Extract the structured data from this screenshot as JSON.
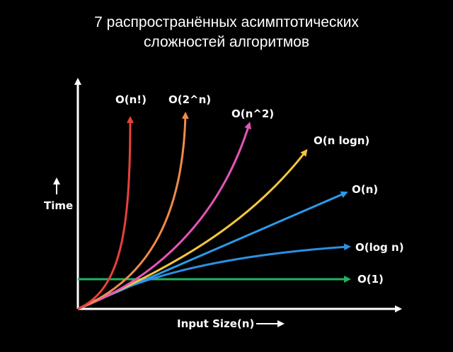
{
  "title": {
    "line1": "7 распространённых асимптотических",
    "line2": "сложностей алгоритмов"
  },
  "axes": {
    "y_label": "Time",
    "x_label": "Input Size(n)",
    "axis_color": "#ffffff"
  },
  "curves": [
    {
      "key": "factorial",
      "label": "O(n!)",
      "color": "#e8413a"
    },
    {
      "key": "exponential",
      "label": "O(2^n)",
      "color": "#f08a4b"
    },
    {
      "key": "quadratic",
      "label": "O(n^2)",
      "color": "#e455b8"
    },
    {
      "key": "nlogn",
      "label": "O(n logn)",
      "color": "#f5c542"
    },
    {
      "key": "linear",
      "label": "O(n)",
      "color": "#2b9be8"
    },
    {
      "key": "log",
      "label": "O(log n)",
      "color": "#2b8fe0"
    },
    {
      "key": "constant",
      "label": "O(1)",
      "color": "#22b35e"
    }
  ]
}
